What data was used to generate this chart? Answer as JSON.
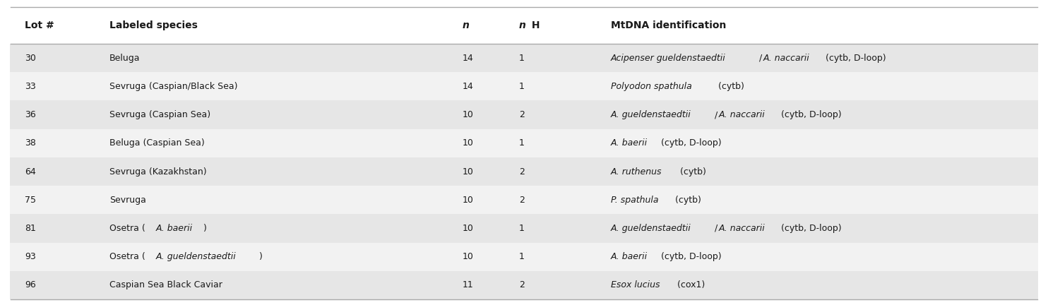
{
  "columns": [
    "Lot #",
    "Labeled species",
    "n",
    "n H",
    "MtDNA identification"
  ],
  "col_x_inches": [
    0.35,
    1.55,
    6.55,
    7.35,
    8.65
  ],
  "rows": [
    [
      "30",
      "Beluga",
      "14",
      "1"
    ],
    [
      "33",
      "Sevruga (Caspian/Black Sea)",
      "14",
      "1"
    ],
    [
      "36",
      "Sevruga (Caspian Sea)",
      "10",
      "2"
    ],
    [
      "38",
      "Beluga (Caspian Sea)",
      "10",
      "1"
    ],
    [
      "64",
      "Sevruga (Kazakhstan)",
      "10",
      "2"
    ],
    [
      "75",
      "Sevruga",
      "10",
      "2"
    ],
    [
      "81",
      "Osetra (A. baerii)",
      "10",
      "1"
    ],
    [
      "93",
      "Osetra (A. gueldenstaedtii)",
      "10",
      "1"
    ],
    [
      "96",
      "Caspian Sea Black Caviar",
      "11",
      "2"
    ]
  ],
  "col1_parts": [
    [
      {
        "t": "Beluga",
        "i": false
      }
    ],
    [
      {
        "t": "Sevruga (Caspian/Black Sea)",
        "i": false
      }
    ],
    [
      {
        "t": "Sevruga (Caspian Sea)",
        "i": false
      }
    ],
    [
      {
        "t": "Beluga (Caspian Sea)",
        "i": false
      }
    ],
    [
      {
        "t": "Sevruga (Kazakhstan)",
        "i": false
      }
    ],
    [
      {
        "t": "Sevruga",
        "i": false
      }
    ],
    [
      {
        "t": "Osetra (",
        "i": false
      },
      {
        "t": "A. baerii",
        "i": true
      },
      {
        "t": ")",
        "i": false
      }
    ],
    [
      {
        "t": "Osetra (",
        "i": false
      },
      {
        "t": "A. gueldenstaedtii",
        "i": true
      },
      {
        "t": ")",
        "i": false
      }
    ],
    [
      {
        "t": "Caspian Sea Black Caviar",
        "i": false
      }
    ]
  ],
  "col4_parts": [
    [
      {
        "t": "Acipenser gueldenstaedtii",
        "i": true
      },
      {
        "t": "/",
        "i": false
      },
      {
        "t": "A. naccarii",
        "i": true
      },
      {
        "t": " (cytb, D-loop)",
        "i": false
      }
    ],
    [
      {
        "t": "Polyodon spathula",
        "i": true
      },
      {
        "t": " (cytb)",
        "i": false
      }
    ],
    [
      {
        "t": "A. gueldenstaedtii",
        "i": true
      },
      {
        "t": "/",
        "i": false
      },
      {
        "t": "A. naccarii",
        "i": true
      },
      {
        "t": " (cytb, D-loop)",
        "i": false
      }
    ],
    [
      {
        "t": "A. baerii",
        "i": true
      },
      {
        "t": " (cytb, D-loop)",
        "i": false
      }
    ],
    [
      {
        "t": "A. ruthenus",
        "i": true
      },
      {
        "t": " (cytb)",
        "i": false
      }
    ],
    [
      {
        "t": "P. spathula",
        "i": true
      },
      {
        "t": " (cytb)",
        "i": false
      }
    ],
    [
      {
        "t": "A. gueldenstaedtii",
        "i": true
      },
      {
        "t": "/",
        "i": false
      },
      {
        "t": "A. naccarii",
        "i": true
      },
      {
        "t": " (cytb, D-loop)",
        "i": false
      }
    ],
    [
      {
        "t": "A. baerii",
        "i": true
      },
      {
        "t": " (cytb, D-loop)",
        "i": false
      }
    ],
    [
      {
        "t": "Esox lucius",
        "i": true
      },
      {
        "t": " (cox1)",
        "i": false
      }
    ]
  ],
  "row_colors": [
    "#e6e6e6",
    "#f2f2f2",
    "#e6e6e6",
    "#f2f2f2",
    "#e6e6e6",
    "#f2f2f2",
    "#e6e6e6",
    "#f2f2f2",
    "#e6e6e6"
  ],
  "line_color": "#aaaaaa",
  "text_color": "#1a1a1a",
  "font_size": 9.0,
  "header_font_size": 10.0,
  "fig_width": 14.84,
  "fig_height": 4.32,
  "dpi": 100
}
